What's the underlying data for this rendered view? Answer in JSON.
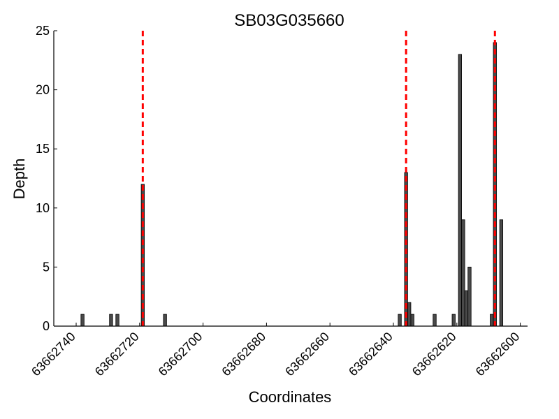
{
  "chart_data": {
    "type": "bar",
    "title": "SB03G035660",
    "xlabel": "Coordinates",
    "ylabel": "Depth",
    "x_reversed": true,
    "xlim": [
      63662745,
      63662600
    ],
    "ylim": [
      0,
      25
    ],
    "x_ticks": [
      63662740,
      63662720,
      63662700,
      63662680,
      63662660,
      63662640,
      63662620,
      63662600
    ],
    "y_ticks": [
      0,
      5,
      10,
      15,
      20,
      25
    ],
    "bar_color": "#4a4a4a",
    "marker_color": "#ff0000",
    "bars": [
      {
        "x": 63662738,
        "y": 1
      },
      {
        "x": 63662729,
        "y": 1
      },
      {
        "x": 63662727,
        "y": 1
      },
      {
        "x": 63662719,
        "y": 12
      },
      {
        "x": 63662712,
        "y": 1
      },
      {
        "x": 63662638,
        "y": 1
      },
      {
        "x": 63662636,
        "y": 13
      },
      {
        "x": 63662635,
        "y": 2
      },
      {
        "x": 63662634,
        "y": 1
      },
      {
        "x": 63662627,
        "y": 1
      },
      {
        "x": 63662621,
        "y": 1
      },
      {
        "x": 63662619,
        "y": 23
      },
      {
        "x": 63662618,
        "y": 9
      },
      {
        "x": 63662617,
        "y": 3
      },
      {
        "x": 63662616,
        "y": 5
      },
      {
        "x": 63662609,
        "y": 1
      },
      {
        "x": 63662608,
        "y": 24
      },
      {
        "x": 63662606,
        "y": 9
      }
    ],
    "markers": [
      63662719,
      63662636,
      63662608
    ],
    "grid": false
  }
}
